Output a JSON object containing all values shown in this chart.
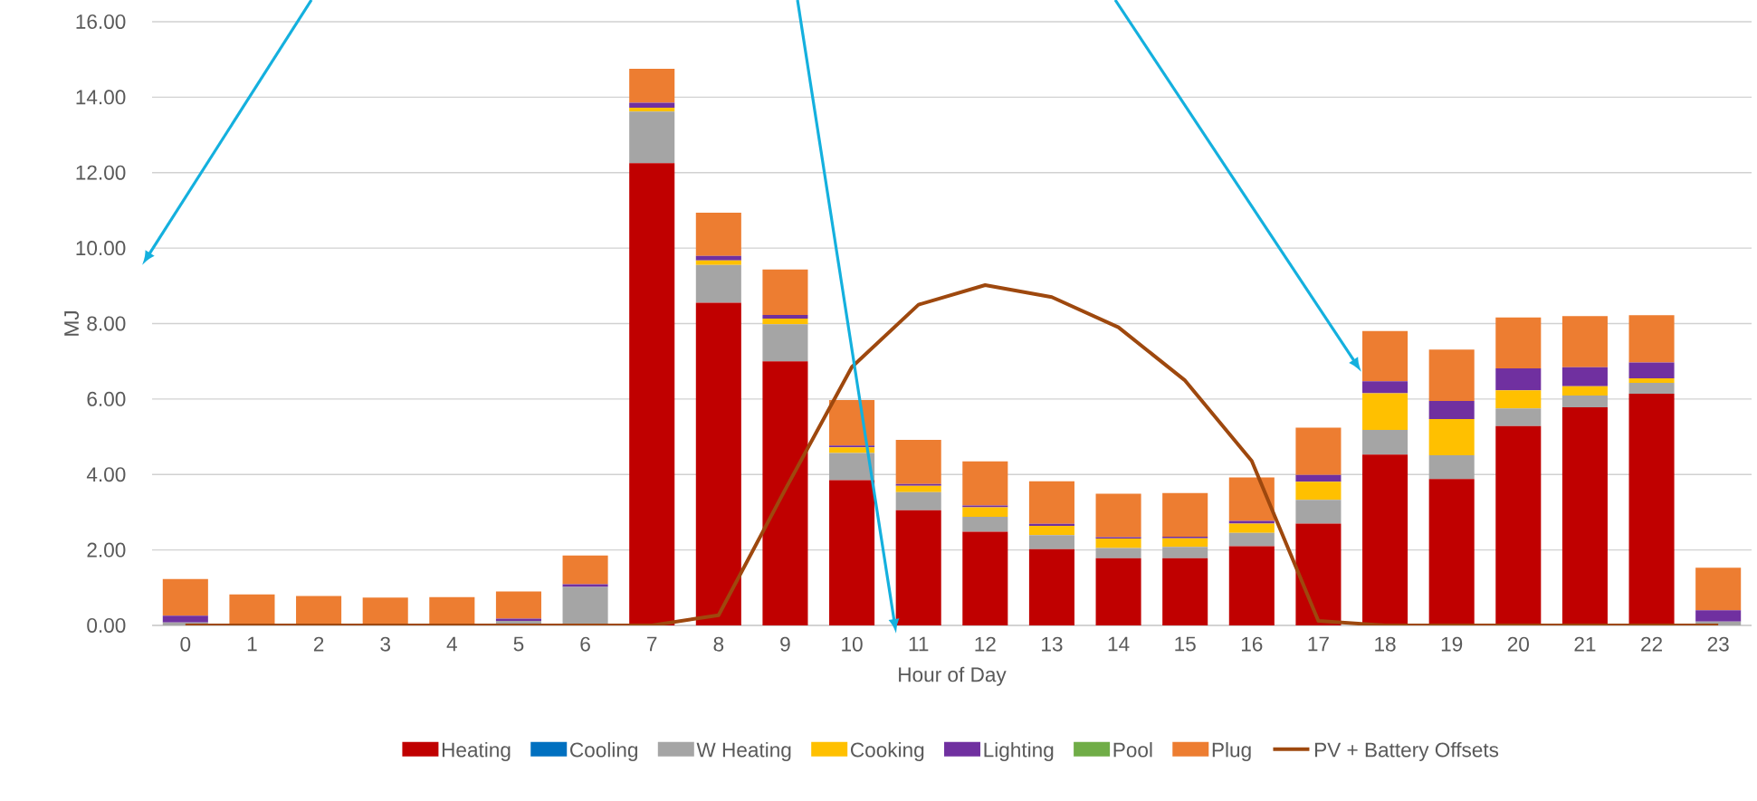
{
  "chart_data": {
    "type": "bar",
    "stacked": true,
    "xlabel": "Hour of Day",
    "ylabel": "MJ",
    "categories": [
      "0",
      "1",
      "2",
      "3",
      "4",
      "5",
      "6",
      "7",
      "8",
      "9",
      "10",
      "11",
      "12",
      "13",
      "14",
      "15",
      "16",
      "17",
      "18",
      "19",
      "20",
      "21",
      "22",
      "23"
    ],
    "ylim": [
      0,
      16
    ],
    "yticks": [
      {
        "value": 0,
        "label": "0.00"
      },
      {
        "value": 2,
        "label": "2.00"
      },
      {
        "value": 4,
        "label": "4.00"
      },
      {
        "value": 6,
        "label": "6.00"
      },
      {
        "value": 8,
        "label": "8.00"
      },
      {
        "value": 10,
        "label": "10.00"
      },
      {
        "value": 12,
        "label": "12.00"
      },
      {
        "value": 14,
        "label": "14.00"
      },
      {
        "value": 16,
        "label": "16.00"
      }
    ],
    "grid": "y",
    "legend": "bottom",
    "marker": "none",
    "series": [
      {
        "name": "Heating",
        "color": "#c00000",
        "values": [
          0,
          0,
          0,
          0,
          0,
          0,
          0,
          12.25,
          8.55,
          7.0,
          3.85,
          3.05,
          2.48,
          2.02,
          1.78,
          1.78,
          2.1,
          2.7,
          4.53,
          3.88,
          5.28,
          5.78,
          6.14,
          0
        ]
      },
      {
        "name": "Cooling",
        "color": "#0070c0",
        "values": [
          0,
          0,
          0,
          0,
          0,
          0,
          0,
          0,
          0,
          0,
          0,
          0,
          0,
          0,
          0,
          0,
          0,
          0,
          0,
          0,
          0,
          0,
          0,
          0
        ]
      },
      {
        "name": "W Heating",
        "color": "#a5a5a5",
        "values": [
          0.08,
          null,
          0,
          0,
          0,
          0.12,
          1.02,
          1.37,
          1.0,
          0.98,
          0.72,
          0.48,
          0.4,
          0.37,
          0.27,
          0.3,
          0.35,
          0.63,
          0.65,
          0.63,
          0.47,
          0.31,
          0.29,
          0.1
        ]
      },
      {
        "name": "Cooking",
        "color": "#ffc000",
        "values": [
          0,
          0,
          0,
          0,
          0,
          0,
          0,
          0.1,
          0.12,
          0.15,
          0.15,
          0.17,
          0.25,
          0.25,
          0.25,
          0.23,
          0.25,
          0.48,
          0.97,
          0.96,
          0.48,
          0.25,
          0.12,
          0
        ]
      },
      {
        "name": "Lighting",
        "color": "#7030a0",
        "values": [
          0.18,
          null,
          0,
          0,
          0,
          0.06,
          0.07,
          0.13,
          0.12,
          0.1,
          0.05,
          0.05,
          0.05,
          0.05,
          0.04,
          0.04,
          0.07,
          0.18,
          0.32,
          0.48,
          0.58,
          0.5,
          0.42,
          0.3
        ]
      },
      {
        "name": "Pool",
        "color": "#70ad47",
        "values": [
          0,
          0,
          0,
          0,
          0,
          0,
          0,
          0,
          0,
          0,
          0,
          0,
          0,
          0,
          0,
          0,
          0,
          0,
          0,
          0,
          0,
          0,
          0,
          0
        ]
      },
      {
        "name": "Plug",
        "color": "#ed7d31",
        "values": [
          0.97,
          0.82,
          0.78,
          0.74,
          0.75,
          0.72,
          0.76,
          0.9,
          1.15,
          1.2,
          1.2,
          1.17,
          1.17,
          1.13,
          1.15,
          1.16,
          1.15,
          1.25,
          1.33,
          1.36,
          1.35,
          1.36,
          1.25,
          1.13
        ]
      },
      {
        "name": "PV + Battery Offsets",
        "type": "line",
        "color": "#9e480e",
        "values": [
          0,
          0,
          0,
          0,
          0,
          0,
          0,
          0,
          0.27,
          3.6,
          6.85,
          8.5,
          9.02,
          8.7,
          7.9,
          6.49,
          4.36,
          0.12,
          0,
          0,
          0,
          0,
          0,
          0
        ]
      }
    ]
  }
}
